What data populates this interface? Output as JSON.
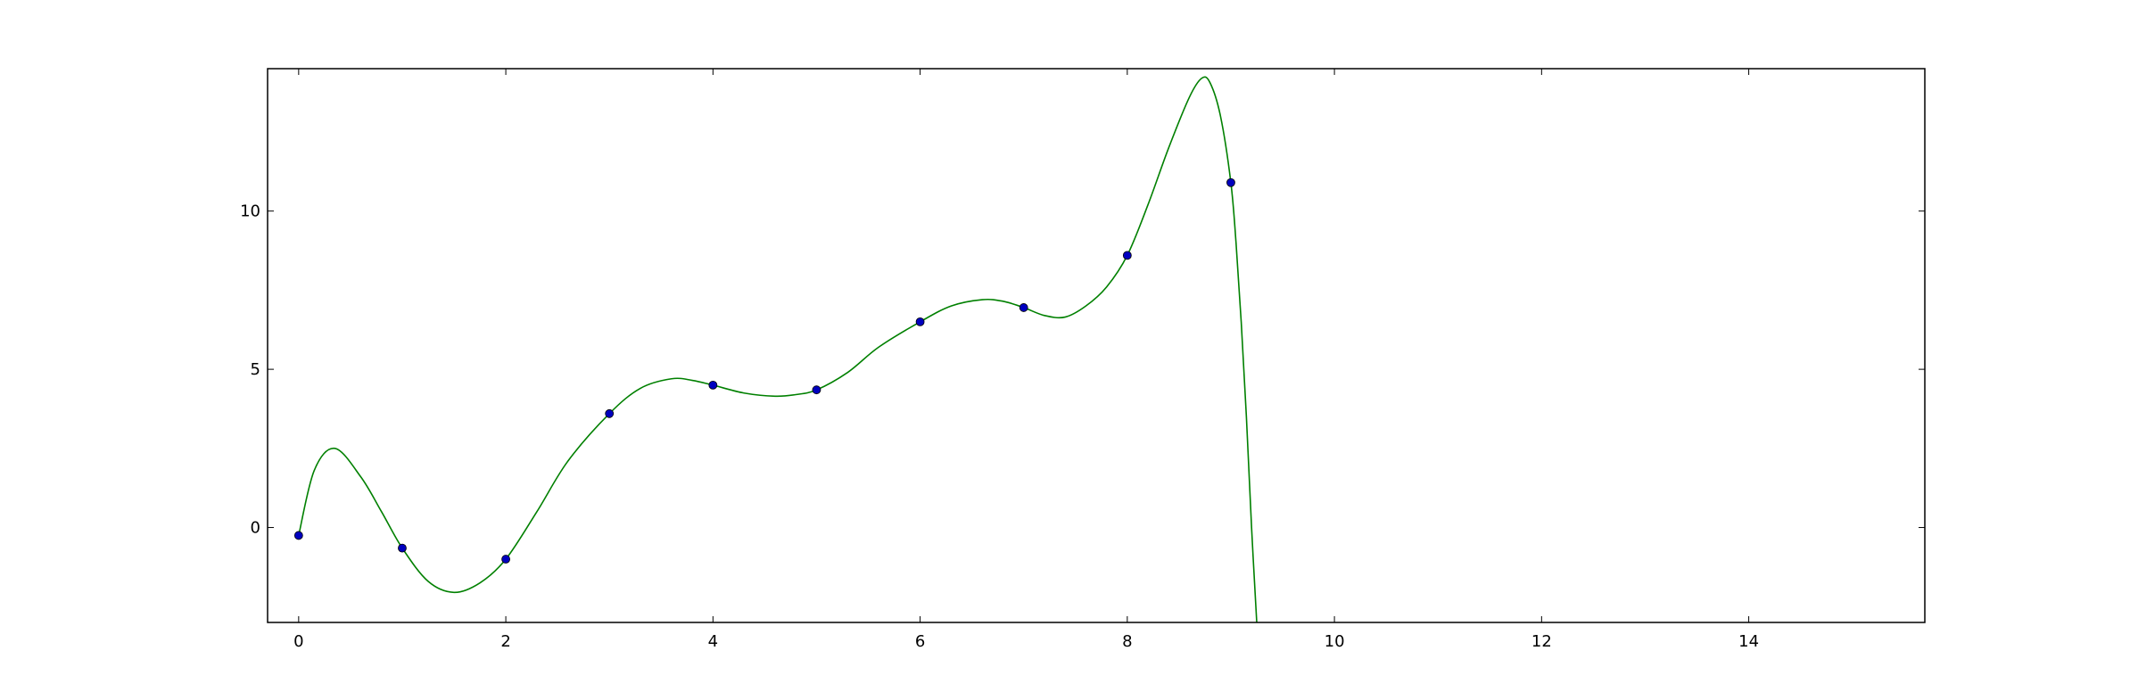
{
  "chart_data": {
    "type": "line",
    "title": "",
    "xlabel": "",
    "ylabel": "",
    "xlim": [
      -0.3,
      15.7
    ],
    "ylim": [
      -3.0,
      14.5
    ],
    "x_ticks": [
      0,
      2,
      4,
      6,
      8,
      10,
      12,
      14
    ],
    "y_ticks": [
      0,
      5,
      10
    ],
    "grid": false,
    "colors": {
      "curve": "#008000",
      "points": "#0000bf",
      "point_edge": "#000000",
      "axes": "#000000",
      "background": "#ffffff"
    },
    "series": [
      {
        "type": "scatter",
        "x": [
          0,
          1,
          2,
          3,
          4,
          5,
          6,
          7,
          8,
          9
        ],
        "y": [
          -0.25,
          -0.65,
          -1.0,
          3.6,
          4.5,
          4.35,
          6.5,
          6.95,
          8.6,
          10.9
        ]
      },
      {
        "type": "line",
        "x": [
          0,
          0.15,
          0.35,
          0.6,
          0.8,
          1.0,
          1.25,
          1.5,
          1.75,
          2.0,
          2.3,
          2.6,
          3.0,
          3.3,
          3.6,
          3.8,
          4.0,
          4.3,
          4.6,
          4.8,
          5.0,
          5.3,
          5.6,
          6.0,
          6.3,
          6.6,
          6.8,
          7.0,
          7.2,
          7.4,
          7.6,
          7.8,
          8.0,
          8.2,
          8.4,
          8.6,
          8.72,
          8.8,
          8.9,
          9.0,
          9.05,
          9.1,
          9.15,
          9.2,
          9.25
        ],
        "y": [
          -0.25,
          1.8,
          2.5,
          1.6,
          0.5,
          -0.65,
          -1.7,
          -2.05,
          -1.75,
          -1.0,
          0.5,
          2.1,
          3.6,
          4.4,
          4.7,
          4.65,
          4.5,
          4.25,
          4.15,
          4.2,
          4.35,
          4.9,
          5.7,
          6.5,
          7.0,
          7.2,
          7.15,
          6.95,
          6.7,
          6.65,
          7.0,
          7.6,
          8.6,
          10.2,
          12.0,
          13.6,
          14.2,
          14.05,
          13.0,
          10.9,
          9.0,
          6.5,
          3.5,
          0.0,
          -3.0
        ]
      }
    ]
  }
}
